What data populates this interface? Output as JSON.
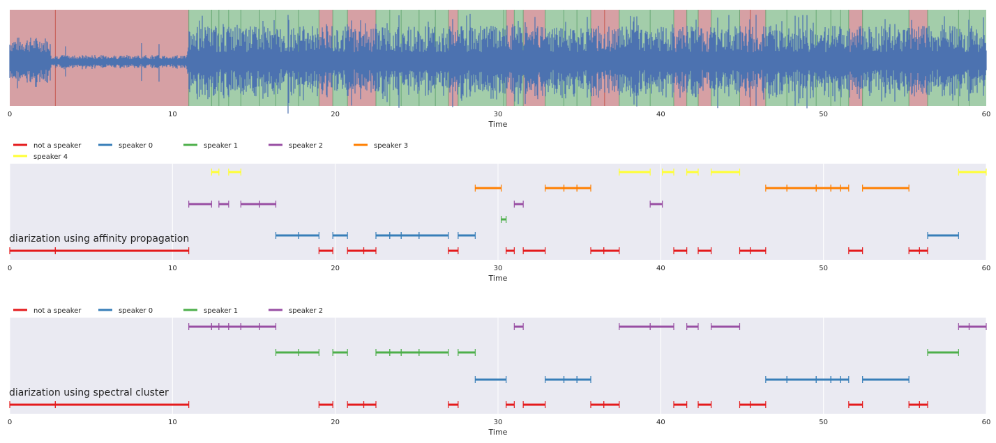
{
  "chart_data": [
    {
      "type": "waveform",
      "xlabel": "Time",
      "xlim": [
        0,
        60
      ],
      "xticks": [
        0,
        10,
        20,
        30,
        40,
        50,
        60
      ],
      "regions": {
        "not_speaker": [
          [
            0,
            11.0
          ],
          [
            19.0,
            19.85
          ],
          [
            20.75,
            22.5
          ],
          [
            26.95,
            27.55
          ],
          [
            30.5,
            31.0
          ],
          [
            31.55,
            32.9
          ],
          [
            35.7,
            37.45
          ],
          [
            40.8,
            41.6
          ],
          [
            42.3,
            43.1
          ],
          [
            44.85,
            46.45
          ],
          [
            51.55,
            52.4
          ],
          [
            55.25,
            56.4
          ]
        ],
        "speaker": [
          [
            11.0,
            19.0
          ],
          [
            19.85,
            20.75
          ],
          [
            22.5,
            26.95
          ],
          [
            27.55,
            30.5
          ],
          [
            31.0,
            31.55
          ],
          [
            32.9,
            35.7
          ],
          [
            37.45,
            40.8
          ],
          [
            41.6,
            42.3
          ],
          [
            43.1,
            44.85
          ],
          [
            46.45,
            51.55
          ],
          [
            52.4,
            55.25
          ],
          [
            56.4,
            60.0
          ]
        ],
        "colors": {
          "not_speaker": "#d6a0a4",
          "speaker": "#a3cdaa",
          "wave": "#4c72b0"
        }
      },
      "boundaries": [
        2.8,
        12.4,
        12.85,
        13.45,
        14.2,
        15.35,
        16.35,
        17.75,
        23.35,
        24.05,
        25.15,
        26.15,
        30.35,
        34.05,
        34.85,
        36.55,
        39.35,
        45.5,
        47.75,
        49.55,
        50.45,
        51.05,
        58.3,
        58.95
      ],
      "low_amplitude_segment": [
        2.5,
        10.9
      ]
    },
    {
      "type": "timeline",
      "annotation": "diarization using affinity propagation",
      "xlabel": "Time",
      "xlim": [
        0,
        60
      ],
      "xticks": [
        0,
        10,
        20,
        30,
        40,
        50,
        60
      ],
      "legend": [
        {
          "label": "not a speaker",
          "color": "#e41a1c"
        },
        {
          "label": "speaker 0",
          "color": "#377eb8"
        },
        {
          "label": "speaker 1",
          "color": "#4daf4a"
        },
        {
          "label": "speaker 2",
          "color": "#984ea3"
        },
        {
          "label": "speaker 3",
          "color": "#ff7f00"
        },
        {
          "label": "speaker 4",
          "color": "#ffff33"
        }
      ],
      "segments": [
        {
          "speaker": "not a speaker",
          "row": 0,
          "start": 0,
          "end": 2.8
        },
        {
          "speaker": "not a speaker",
          "row": 0,
          "start": 2.8,
          "end": 11.0
        },
        {
          "speaker": "not a speaker",
          "row": 0,
          "start": 19.0,
          "end": 19.85
        },
        {
          "speaker": "not a speaker",
          "row": 0,
          "start": 20.75,
          "end": 21.75
        },
        {
          "speaker": "not a speaker",
          "row": 0,
          "start": 21.75,
          "end": 22.5
        },
        {
          "speaker": "not a speaker",
          "row": 0,
          "start": 26.95,
          "end": 27.55
        },
        {
          "speaker": "not a speaker",
          "row": 0,
          "start": 30.5,
          "end": 31.0
        },
        {
          "speaker": "not a speaker",
          "row": 0,
          "start": 31.55,
          "end": 32.9
        },
        {
          "speaker": "not a speaker",
          "row": 0,
          "start": 35.7,
          "end": 36.5
        },
        {
          "speaker": "not a speaker",
          "row": 0,
          "start": 36.5,
          "end": 37.45
        },
        {
          "speaker": "not a speaker",
          "row": 0,
          "start": 40.8,
          "end": 41.6
        },
        {
          "speaker": "not a speaker",
          "row": 0,
          "start": 42.3,
          "end": 43.1
        },
        {
          "speaker": "not a speaker",
          "row": 0,
          "start": 44.85,
          "end": 45.5
        },
        {
          "speaker": "not a speaker",
          "row": 0,
          "start": 45.5,
          "end": 46.45
        },
        {
          "speaker": "not a speaker",
          "row": 0,
          "start": 51.55,
          "end": 52.4
        },
        {
          "speaker": "not a speaker",
          "row": 0,
          "start": 55.25,
          "end": 55.9
        },
        {
          "speaker": "not a speaker",
          "row": 0,
          "start": 55.9,
          "end": 56.4
        },
        {
          "speaker": "speaker 0",
          "row": 1,
          "start": 16.35,
          "end": 17.75
        },
        {
          "speaker": "speaker 0",
          "row": 1,
          "start": 17.75,
          "end": 19.0
        },
        {
          "speaker": "speaker 0",
          "row": 1,
          "start": 19.85,
          "end": 20.75
        },
        {
          "speaker": "speaker 0",
          "row": 1,
          "start": 22.5,
          "end": 23.35
        },
        {
          "speaker": "speaker 0",
          "row": 1,
          "start": 23.35,
          "end": 24.05
        },
        {
          "speaker": "speaker 0",
          "row": 1,
          "start": 24.05,
          "end": 25.15
        },
        {
          "speaker": "speaker 0",
          "row": 1,
          "start": 25.15,
          "end": 26.95
        },
        {
          "speaker": "speaker 0",
          "row": 1,
          "start": 27.55,
          "end": 28.6
        },
        {
          "speaker": "speaker 0",
          "row": 1,
          "start": 56.4,
          "end": 58.3
        },
        {
          "speaker": "speaker 1",
          "row": 2,
          "start": 30.2,
          "end": 30.5
        },
        {
          "speaker": "speaker 2",
          "row": 3,
          "start": 11.0,
          "end": 12.4
        },
        {
          "speaker": "speaker 2",
          "row": 3,
          "start": 12.85,
          "end": 13.45
        },
        {
          "speaker": "speaker 2",
          "row": 3,
          "start": 14.2,
          "end": 15.35
        },
        {
          "speaker": "speaker 2",
          "row": 3,
          "start": 15.35,
          "end": 16.35
        },
        {
          "speaker": "speaker 2",
          "row": 3,
          "start": 31.0,
          "end": 31.55
        },
        {
          "speaker": "speaker 2",
          "row": 3,
          "start": 39.35,
          "end": 40.1
        },
        {
          "speaker": "speaker 3",
          "row": 4,
          "start": 28.6,
          "end": 30.2
        },
        {
          "speaker": "speaker 3",
          "row": 4,
          "start": 32.9,
          "end": 34.05
        },
        {
          "speaker": "speaker 3",
          "row": 4,
          "start": 34.05,
          "end": 34.85
        },
        {
          "speaker": "speaker 3",
          "row": 4,
          "start": 34.85,
          "end": 35.7
        },
        {
          "speaker": "speaker 3",
          "row": 4,
          "start": 46.45,
          "end": 47.75
        },
        {
          "speaker": "speaker 3",
          "row": 4,
          "start": 47.75,
          "end": 49.55
        },
        {
          "speaker": "speaker 3",
          "row": 4,
          "start": 49.55,
          "end": 50.45
        },
        {
          "speaker": "speaker 3",
          "row": 4,
          "start": 50.45,
          "end": 51.05
        },
        {
          "speaker": "speaker 3",
          "row": 4,
          "start": 51.05,
          "end": 51.55
        },
        {
          "speaker": "speaker 3",
          "row": 4,
          "start": 52.4,
          "end": 55.25
        },
        {
          "speaker": "speaker 4",
          "row": 5,
          "start": 12.4,
          "end": 12.85
        },
        {
          "speaker": "speaker 4",
          "row": 5,
          "start": 13.45,
          "end": 14.2
        },
        {
          "speaker": "speaker 4",
          "row": 5,
          "start": 37.45,
          "end": 39.35
        },
        {
          "speaker": "speaker 4",
          "row": 5,
          "start": 40.1,
          "end": 40.8
        },
        {
          "speaker": "speaker 4",
          "row": 5,
          "start": 41.6,
          "end": 42.3
        },
        {
          "speaker": "speaker 4",
          "row": 5,
          "start": 43.1,
          "end": 44.85
        },
        {
          "speaker": "speaker 4",
          "row": 5,
          "start": 58.3,
          "end": 60.0
        }
      ]
    },
    {
      "type": "timeline",
      "annotation": "diarization using spectral cluster",
      "xlabel": "Time",
      "xlim": [
        0,
        60
      ],
      "xticks": [
        0,
        10,
        20,
        30,
        40,
        50,
        60
      ],
      "legend": [
        {
          "label": "not a speaker",
          "color": "#e41a1c"
        },
        {
          "label": "speaker 0",
          "color": "#377eb8"
        },
        {
          "label": "speaker 1",
          "color": "#4daf4a"
        },
        {
          "label": "speaker 2",
          "color": "#984ea3"
        }
      ],
      "segments": [
        {
          "speaker": "not a speaker",
          "row": 0,
          "start": 0,
          "end": 2.8
        },
        {
          "speaker": "not a speaker",
          "row": 0,
          "start": 2.8,
          "end": 11.0
        },
        {
          "speaker": "not a speaker",
          "row": 0,
          "start": 19.0,
          "end": 19.85
        },
        {
          "speaker": "not a speaker",
          "row": 0,
          "start": 20.75,
          "end": 21.75
        },
        {
          "speaker": "not a speaker",
          "row": 0,
          "start": 21.75,
          "end": 22.5
        },
        {
          "speaker": "not a speaker",
          "row": 0,
          "start": 26.95,
          "end": 27.55
        },
        {
          "speaker": "not a speaker",
          "row": 0,
          "start": 30.5,
          "end": 31.0
        },
        {
          "speaker": "not a speaker",
          "row": 0,
          "start": 31.55,
          "end": 32.9
        },
        {
          "speaker": "not a speaker",
          "row": 0,
          "start": 35.7,
          "end": 36.5
        },
        {
          "speaker": "not a speaker",
          "row": 0,
          "start": 36.5,
          "end": 37.45
        },
        {
          "speaker": "not a speaker",
          "row": 0,
          "start": 40.8,
          "end": 41.6
        },
        {
          "speaker": "not a speaker",
          "row": 0,
          "start": 42.3,
          "end": 43.1
        },
        {
          "speaker": "not a speaker",
          "row": 0,
          "start": 44.85,
          "end": 45.5
        },
        {
          "speaker": "not a speaker",
          "row": 0,
          "start": 45.5,
          "end": 46.45
        },
        {
          "speaker": "not a speaker",
          "row": 0,
          "start": 51.55,
          "end": 52.4
        },
        {
          "speaker": "not a speaker",
          "row": 0,
          "start": 55.25,
          "end": 55.9
        },
        {
          "speaker": "not a speaker",
          "row": 0,
          "start": 55.9,
          "end": 56.4
        },
        {
          "speaker": "speaker 0",
          "row": 1,
          "start": 28.6,
          "end": 30.5
        },
        {
          "speaker": "speaker 0",
          "row": 1,
          "start": 32.9,
          "end": 34.05
        },
        {
          "speaker": "speaker 0",
          "row": 1,
          "start": 34.05,
          "end": 34.85
        },
        {
          "speaker": "speaker 0",
          "row": 1,
          "start": 34.85,
          "end": 35.7
        },
        {
          "speaker": "speaker 0",
          "row": 1,
          "start": 46.45,
          "end": 47.75
        },
        {
          "speaker": "speaker 0",
          "row": 1,
          "start": 47.75,
          "end": 49.55
        },
        {
          "speaker": "speaker 0",
          "row": 1,
          "start": 49.55,
          "end": 50.45
        },
        {
          "speaker": "speaker 0",
          "row": 1,
          "start": 50.45,
          "end": 51.05
        },
        {
          "speaker": "speaker 0",
          "row": 1,
          "start": 51.05,
          "end": 51.55
        },
        {
          "speaker": "speaker 0",
          "row": 1,
          "start": 52.4,
          "end": 55.25
        },
        {
          "speaker": "speaker 1",
          "row": 2,
          "start": 16.35,
          "end": 17.75
        },
        {
          "speaker": "speaker 1",
          "row": 2,
          "start": 17.75,
          "end": 19.0
        },
        {
          "speaker": "speaker 1",
          "row": 2,
          "start": 19.85,
          "end": 20.75
        },
        {
          "speaker": "speaker 1",
          "row": 2,
          "start": 22.5,
          "end": 23.35
        },
        {
          "speaker": "speaker 1",
          "row": 2,
          "start": 23.35,
          "end": 24.05
        },
        {
          "speaker": "speaker 1",
          "row": 2,
          "start": 24.05,
          "end": 25.15
        },
        {
          "speaker": "speaker 1",
          "row": 2,
          "start": 25.15,
          "end": 26.95
        },
        {
          "speaker": "speaker 1",
          "row": 2,
          "start": 27.55,
          "end": 28.6
        },
        {
          "speaker": "speaker 1",
          "row": 2,
          "start": 56.4,
          "end": 58.3
        },
        {
          "speaker": "speaker 2",
          "row": 3,
          "start": 11.0,
          "end": 12.4
        },
        {
          "speaker": "speaker 2",
          "row": 3,
          "start": 12.4,
          "end": 12.85
        },
        {
          "speaker": "speaker 2",
          "row": 3,
          "start": 12.85,
          "end": 13.45
        },
        {
          "speaker": "speaker 2",
          "row": 3,
          "start": 13.45,
          "end": 14.2
        },
        {
          "speaker": "speaker 2",
          "row": 3,
          "start": 14.2,
          "end": 15.35
        },
        {
          "speaker": "speaker 2",
          "row": 3,
          "start": 15.35,
          "end": 16.35
        },
        {
          "speaker": "speaker 2",
          "row": 3,
          "start": 31.0,
          "end": 31.55
        },
        {
          "speaker": "speaker 2",
          "row": 3,
          "start": 37.45,
          "end": 39.35
        },
        {
          "speaker": "speaker 2",
          "row": 3,
          "start": 39.35,
          "end": 40.8
        },
        {
          "speaker": "speaker 2",
          "row": 3,
          "start": 41.6,
          "end": 42.3
        },
        {
          "speaker": "speaker 2",
          "row": 3,
          "start": 43.1,
          "end": 44.85
        },
        {
          "speaker": "speaker 2",
          "row": 3,
          "start": 58.3,
          "end": 58.95
        },
        {
          "speaker": "speaker 2",
          "row": 3,
          "start": 58.95,
          "end": 60.0
        }
      ]
    }
  ]
}
